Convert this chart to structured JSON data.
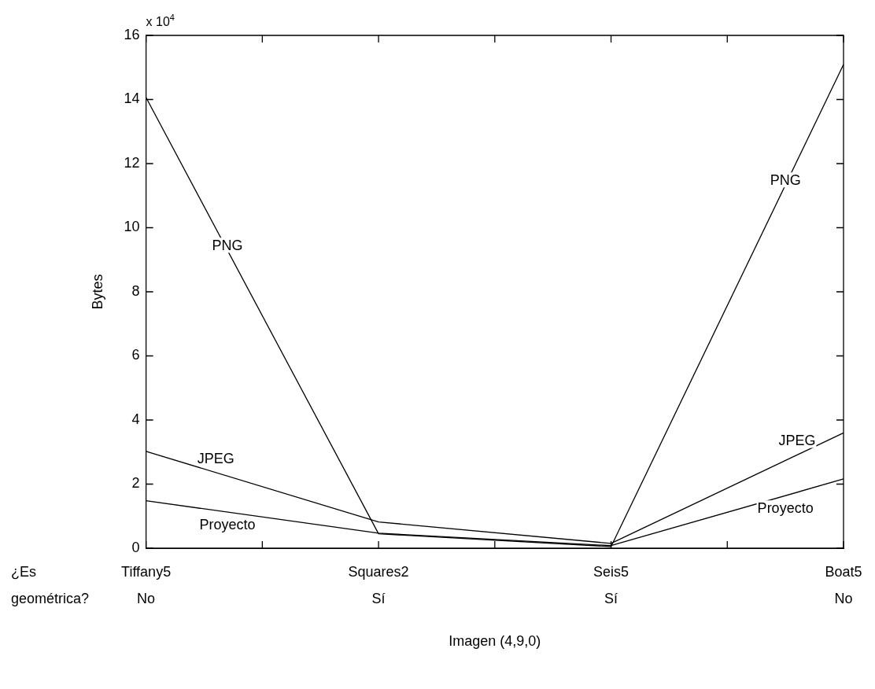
{
  "chart_data": {
    "type": "line",
    "xlabel": "Imagen (4,9,0)",
    "ylabel": "Bytes",
    "categories": [
      "Tiffany5\nNo",
      "Squares2\nSí",
      "Seis5\nSí",
      "Boat5\nNo"
    ],
    "series": [
      {
        "name": "PNG",
        "color": "#000000",
        "values": [
          14.06,
          0.45,
          0.05,
          15.09
        ]
      },
      {
        "name": "JPEG",
        "color": "#000000",
        "values": [
          3.02,
          0.82,
          0.15,
          3.6
        ]
      },
      {
        "name": "Proyecto",
        "color": "#000000",
        "values": [
          1.48,
          0.47,
          0.08,
          2.16
        ]
      }
    ],
    "ylim": [
      0,
      16
    ],
    "yticks": [
      0,
      2,
      4,
      6,
      8,
      10,
      12,
      14,
      16
    ],
    "grid": false,
    "legend": false,
    "marker": "none",
    "line_style": "solid",
    "annotations": [
      "x 10$^{4}$",
      "¿Es geométrica?"
    ]
  }
}
